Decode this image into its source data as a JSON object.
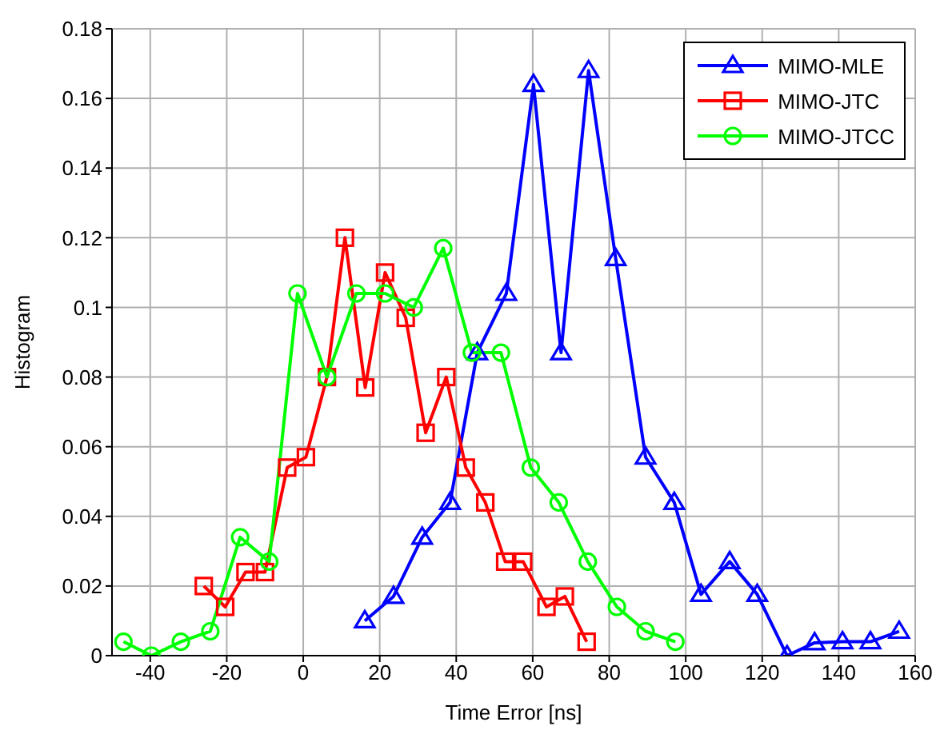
{
  "chart_data": {
    "type": "line",
    "xlabel": "Time Error [ns]",
    "ylabel": "Histogram",
    "xlim": [
      -50,
      160
    ],
    "ylim": [
      0,
      0.18
    ],
    "xticks": [
      -40,
      -20,
      0,
      20,
      40,
      60,
      80,
      100,
      120,
      140,
      160
    ],
    "yticks": [
      0,
      0.02,
      0.04,
      0.06,
      0.08,
      0.1,
      0.12,
      0.14,
      0.16,
      0.18
    ],
    "grid": true,
    "legend": "top right",
    "line_style": "solid",
    "series": [
      {
        "name": "MIMO-MLE",
        "color": "#0000ff",
        "marker": "triangle",
        "x": [
          16.1,
          23.6,
          31.1,
          38.4,
          45.5,
          53.1,
          60.2,
          67.4,
          74.6,
          81.7,
          89.5,
          97,
          104,
          111.5,
          118.7,
          126.5,
          133.7,
          141,
          148.3,
          155.8
        ],
        "values": [
          0.01,
          0.017,
          0.034,
          0.044,
          0.087,
          0.104,
          0.164,
          0.087,
          0.168,
          0.114,
          0.057,
          0.044,
          0.0176,
          0.027,
          0.0176,
          0.0,
          0.0037,
          0.004,
          0.004,
          0.007
        ]
      },
      {
        "name": "MIMO-JTC",
        "color": "#ff0000",
        "marker": "square",
        "x": [
          -26,
          -20.4,
          -15.1,
          -10,
          -4.2,
          0.7,
          6.2,
          10.9,
          16.2,
          21.4,
          26.8,
          32,
          37.4,
          42.5,
          47.6,
          52.8,
          57.5,
          63.6,
          68.4,
          74.1
        ],
        "values": [
          0.02,
          0.014,
          0.024,
          0.024,
          0.054,
          0.057,
          0.08,
          0.12,
          0.077,
          0.11,
          0.097,
          0.064,
          0.08,
          0.054,
          0.044,
          0.027,
          0.027,
          0.014,
          0.017,
          0.004
        ]
      },
      {
        "name": "MIMO-JTCC",
        "color": "#00ff00",
        "marker": "circle",
        "x": [
          -47,
          -39.7,
          -32,
          -24.3,
          -16.5,
          -8.9,
          -1.5,
          6.2,
          13.9,
          21.4,
          28.9,
          36.6,
          44.1,
          51.7,
          59.5,
          66.8,
          74.4,
          82,
          89.5,
          97.3
        ],
        "values": [
          0.004,
          0.0,
          0.004,
          0.007,
          0.034,
          0.027,
          0.104,
          0.08,
          0.104,
          0.104,
          0.1,
          0.117,
          0.087,
          0.087,
          0.054,
          0.044,
          0.027,
          0.014,
          0.007,
          0.004
        ]
      }
    ]
  }
}
